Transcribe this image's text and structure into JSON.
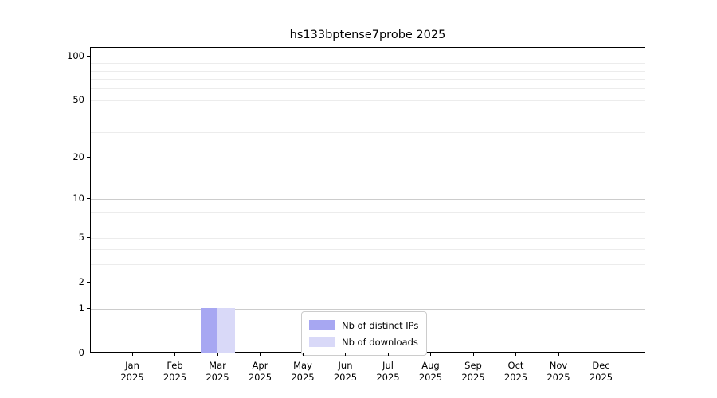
{
  "title": "hs133bptense7probe 2025",
  "colors": {
    "bar_distinct_ips": "#a7a7f2",
    "bar_downloads": "#d9d9f8",
    "grid_major": "#cccccc",
    "grid_minor": "#ececec",
    "axis": "#000000",
    "legend_border": "#cccccc",
    "background": "#ffffff"
  },
  "chart_data": {
    "type": "bar",
    "title": "hs133bptense7probe 2025",
    "categories": [
      "Jan 2025",
      "Feb 2025",
      "Mar 2025",
      "Apr 2025",
      "May 2025",
      "Jun 2025",
      "Jul 2025",
      "Aug 2025",
      "Sep 2025",
      "Oct 2025",
      "Nov 2025",
      "Dec 2025"
    ],
    "series": [
      {
        "name": "Nb of distinct IPs",
        "color": "#a7a7f2",
        "values": [
          0,
          0,
          1,
          0,
          0,
          0,
          0,
          0,
          0,
          0,
          0,
          0
        ]
      },
      {
        "name": "Nb of downloads",
        "color": "#d9d9f8",
        "values": [
          0,
          0,
          1,
          0,
          0,
          0,
          0,
          0,
          0,
          0,
          0,
          0
        ]
      }
    ],
    "xlabel": "",
    "ylabel": "",
    "yscale": "log10(1+x)",
    "ylim": [
      0,
      115
    ],
    "y_ticks": [
      0,
      1,
      2,
      5,
      10,
      20,
      50,
      100
    ],
    "gridlines": [
      1,
      2,
      3,
      4,
      5,
      6,
      7,
      8,
      9,
      10,
      20,
      30,
      40,
      50,
      60,
      70,
      80,
      90,
      100
    ],
    "major_gridlines": [
      1,
      10,
      100
    ],
    "grid": true,
    "legend_position": "inside bottom-center"
  }
}
